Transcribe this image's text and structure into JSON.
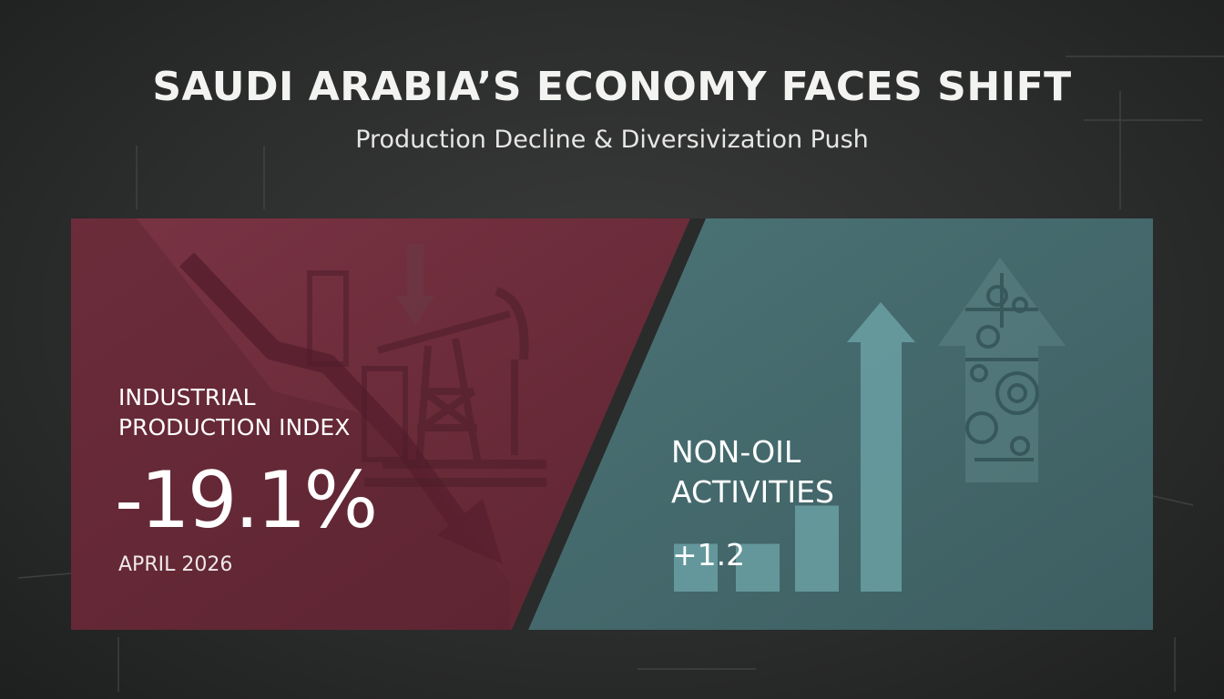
{
  "header": {
    "title": "SAUDI ARABIA’S ECONOMY FACES SHIFT",
    "subtitle": "Production Decline & Diversivization Push"
  },
  "industrial_panel": {
    "label": "INDUSTRIAL PRODUCTION INDEX",
    "value": "-19.1%",
    "date": "APRIL 2026",
    "color": "#6e2e3c",
    "icons": [
      "down-trend-arrow-icon",
      "oil-pumpjack-icon",
      "down-arrow-icon"
    ]
  },
  "nonoil_panel": {
    "label": "NON-OIL ACTIVITIES",
    "value": "+1.2",
    "color": "#466a6d",
    "bar_levels": [
      0.25,
      0.25,
      0.45,
      1.0
    ],
    "icons": [
      "up-arrow-icon",
      "gear-circuit-arrow-icon"
    ]
  }
}
